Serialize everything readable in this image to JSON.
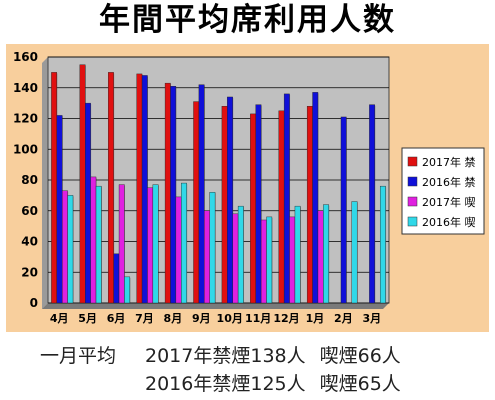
{
  "title": "年間平均席利用人数",
  "chart_data": {
    "type": "bar",
    "categories": [
      "4月",
      "5月",
      "6月",
      "7月",
      "8月",
      "9月",
      "10月",
      "11月",
      "12月",
      "1月",
      "2月",
      "3月"
    ],
    "series": [
      {
        "name": "2017年 禁",
        "color": "#e01010",
        "values": [
          150,
          155,
          150,
          149,
          143,
          131,
          128,
          123,
          125,
          128,
          null,
          null
        ]
      },
      {
        "name": "2016年 禁",
        "color": "#1010d8",
        "values": [
          122,
          130,
          32,
          148,
          141,
          142,
          134,
          129,
          136,
          137,
          121,
          129
        ]
      },
      {
        "name": "2017年 喫",
        "color": "#e020e0",
        "values": [
          73,
          82,
          77,
          75,
          69,
          60,
          58,
          54,
          56,
          60,
          null,
          null
        ]
      },
      {
        "name": "2016年 喫",
        "color": "#30d8e8",
        "values": [
          70,
          76,
          17,
          77,
          78,
          72,
          63,
          56,
          63,
          64,
          66,
          76
        ]
      }
    ],
    "ylim": [
      0,
      160
    ],
    "yticks": [
      0,
      20,
      40,
      60,
      80,
      100,
      120,
      140,
      160
    ],
    "grid": true,
    "legend": "right",
    "plot_background": "#c0c0c0",
    "panel_background": "#f8cf9d"
  },
  "summary": {
    "lead": "一月平均",
    "row1_a": "2017年禁煙138人",
    "row1_b": "喫煙66人",
    "row2_a": "2016年禁煙125人",
    "row2_b": "喫煙65人"
  }
}
